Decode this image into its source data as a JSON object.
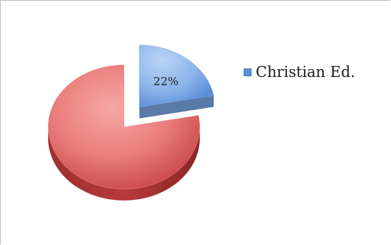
{
  "chart_data": {
    "type": "pie",
    "title": "",
    "slices": [
      {
        "name": "Christian Ed.",
        "value": 22,
        "label": "22%",
        "color": "#5b93dc",
        "exploded": true
      },
      {
        "name": "",
        "value": 78,
        "label": "",
        "color": "#e05a5a",
        "exploded": false
      }
    ],
    "legend": {
      "position": "right",
      "entries": [
        "Christian Ed."
      ]
    },
    "style": "3d-exploded"
  }
}
